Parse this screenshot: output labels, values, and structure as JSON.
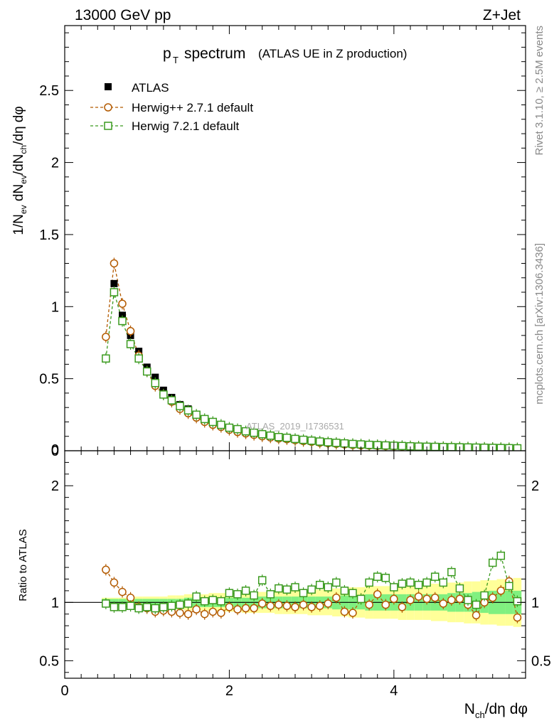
{
  "header": {
    "energy": "13000 GeV pp",
    "process": "Z+Jet"
  },
  "side_labels": {
    "rivet": "Rivet 3.1.10, ≥ 2.5M events",
    "source": "mcplots.cern.ch [arXiv:1306.3436]"
  },
  "watermark": "ATLAS_2019_I1736531",
  "colors": {
    "atlas": "#000000",
    "herwigpp": "#b35a00",
    "herwig7": "#3a9a1e",
    "band_yellow": "#ffff99",
    "band_green": "#80f080"
  },
  "chart_data": [
    {
      "type": "scatter",
      "title_main": "p",
      "title_sub": "T",
      "title_rest": "spectrum",
      "title_note": "(ATLAS UE in Z production)",
      "ylabel": "1/N_ev dN_ev/dN_ch/dη dφ",
      "xlim": [
        0,
        5.6
      ],
      "ylim": [
        0,
        2.95
      ],
      "yticks": [
        0,
        0.5,
        1,
        1.5,
        2,
        2.5
      ],
      "ytick_labels": [
        "0",
        "0.5",
        "1",
        "1.5",
        "2",
        "2.5"
      ],
      "legend": {
        "position": "top-left",
        "entries": [
          "ATLAS",
          "Herwig++ 2.7.1 default",
          "Herwig 7.2.1 default"
        ]
      },
      "x": [
        0.5,
        0.6,
        0.7,
        0.8,
        0.9,
        1.0,
        1.1,
        1.2,
        1.3,
        1.4,
        1.5,
        1.6,
        1.7,
        1.8,
        1.9,
        2.0,
        2.1,
        2.2,
        2.3,
        2.4,
        2.5,
        2.6,
        2.7,
        2.8,
        2.9,
        3.0,
        3.1,
        3.2,
        3.3,
        3.4,
        3.5,
        3.6,
        3.7,
        3.8,
        3.9,
        4.0,
        4.1,
        4.2,
        4.3,
        4.4,
        4.5,
        4.6,
        4.7,
        4.8,
        4.9,
        5.0,
        5.1,
        5.2,
        5.3,
        5.4,
        5.5
      ],
      "series": [
        {
          "name": "ATLAS",
          "values": [
            0.64,
            1.16,
            0.94,
            0.8,
            0.69,
            0.58,
            0.51,
            0.42,
            0.37,
            0.32,
            0.29,
            0.25,
            0.22,
            0.2,
            0.18,
            0.16,
            0.145,
            0.13,
            0.12,
            0.11,
            0.1,
            0.09,
            0.085,
            0.078,
            0.072,
            0.066,
            0.06,
            0.056,
            0.052,
            0.048,
            0.044,
            0.041,
            0.038,
            0.036,
            0.034,
            0.032,
            0.03,
            0.028,
            0.027,
            0.026,
            0.025,
            0.024,
            0.023,
            0.022,
            0.021,
            0.02,
            0.019,
            0.018,
            0.017,
            0.016,
            0.016
          ]
        },
        {
          "name": "Herwig++ 2.7.1 default",
          "values": [
            0.79,
            1.3,
            1.02,
            0.83,
            0.66,
            0.55,
            0.45,
            0.39,
            0.34,
            0.29,
            0.26,
            0.23,
            0.2,
            0.18,
            0.165,
            0.145,
            0.13,
            0.12,
            0.11,
            0.1,
            0.092,
            0.085,
            0.08,
            0.073,
            0.067,
            0.062,
            0.056,
            0.052,
            0.048,
            0.044,
            0.04,
            0.037,
            0.036,
            0.034,
            0.032,
            0.031,
            0.029,
            0.027,
            0.026,
            0.025,
            0.024,
            0.023,
            0.022,
            0.021,
            0.02,
            0.019,
            0.018,
            0.017,
            0.016,
            0.015,
            0.014
          ]
        },
        {
          "name": "Herwig 7.2.1 default",
          "values": [
            0.64,
            1.1,
            0.9,
            0.74,
            0.64,
            0.55,
            0.47,
            0.39,
            0.35,
            0.31,
            0.28,
            0.25,
            0.22,
            0.2,
            0.18,
            0.16,
            0.15,
            0.135,
            0.125,
            0.115,
            0.105,
            0.095,
            0.09,
            0.082,
            0.076,
            0.07,
            0.064,
            0.059,
            0.055,
            0.051,
            0.047,
            0.044,
            0.041,
            0.039,
            0.037,
            0.035,
            0.033,
            0.031,
            0.029,
            0.028,
            0.027,
            0.026,
            0.025,
            0.024,
            0.023,
            0.022,
            0.021,
            0.02,
            0.019,
            0.018,
            0.017
          ]
        }
      ]
    },
    {
      "type": "scatter",
      "ylabel": "Ratio to ATLAS",
      "xlabel": "N_ch/dη dφ",
      "xlim": [
        0,
        5.6
      ],
      "ylim": [
        0.35,
        2.3
      ],
      "xticks": [
        0,
        2,
        4
      ],
      "xtick_labels": [
        "0",
        "2",
        "4"
      ],
      "yticks": [
        0.5,
        1,
        2
      ],
      "ytick_labels": [
        "0.5",
        "1",
        "2"
      ],
      "x": [
        0.5,
        0.6,
        0.7,
        0.8,
        0.9,
        1.0,
        1.1,
        1.2,
        1.3,
        1.4,
        1.5,
        1.6,
        1.7,
        1.8,
        1.9,
        2.0,
        2.1,
        2.2,
        2.3,
        2.4,
        2.5,
        2.6,
        2.7,
        2.8,
        2.9,
        3.0,
        3.1,
        3.2,
        3.3,
        3.4,
        3.5,
        3.6,
        3.7,
        3.8,
        3.9,
        4.0,
        4.1,
        4.2,
        4.3,
        4.4,
        4.5,
        4.6,
        4.7,
        4.8,
        4.9,
        5.0,
        5.1,
        5.2,
        5.3,
        5.4,
        5.5
      ],
      "band_green": [
        0.03,
        0.03,
        0.03,
        0.03,
        0.03,
        0.03,
        0.03,
        0.03,
        0.03,
        0.03,
        0.04,
        0.04,
        0.04,
        0.04,
        0.04,
        0.04,
        0.04,
        0.04,
        0.05,
        0.05,
        0.05,
        0.05,
        0.05,
        0.05,
        0.05,
        0.05,
        0.05,
        0.05,
        0.06,
        0.06,
        0.06,
        0.06,
        0.07,
        0.07,
        0.07,
        0.07,
        0.07,
        0.07,
        0.07,
        0.07,
        0.07,
        0.07,
        0.08,
        0.08,
        0.08,
        0.09,
        0.09,
        0.1,
        0.1,
        0.1,
        0.1
      ],
      "band_yellow": [
        0.04,
        0.04,
        0.04,
        0.04,
        0.05,
        0.05,
        0.05,
        0.05,
        0.06,
        0.06,
        0.07,
        0.07,
        0.07,
        0.08,
        0.08,
        0.08,
        0.08,
        0.09,
        0.09,
        0.09,
        0.09,
        0.1,
        0.1,
        0.1,
        0.1,
        0.11,
        0.11,
        0.11,
        0.12,
        0.12,
        0.13,
        0.13,
        0.14,
        0.14,
        0.14,
        0.14,
        0.15,
        0.15,
        0.15,
        0.15,
        0.16,
        0.16,
        0.17,
        0.17,
        0.18,
        0.18,
        0.19,
        0.19,
        0.2,
        0.2,
        0.21
      ],
      "series": [
        {
          "name": "Herwig++ 2.7.1 default",
          "values": [
            1.28,
            1.17,
            1.09,
            1.04,
            0.96,
            0.95,
            0.92,
            0.93,
            0.92,
            0.91,
            0.9,
            0.94,
            0.9,
            0.92,
            0.91,
            0.96,
            0.94,
            0.95,
            0.95,
            0.99,
            0.97,
            0.98,
            0.97,
            0.96,
            0.98,
            0.96,
            0.97,
            0.99,
            1.04,
            0.92,
            0.91,
            1.03,
            0.98,
            1.07,
            0.98,
            1.03,
            0.96,
            1.02,
            1.05,
            1.03,
            1.04,
            0.99,
            1.02,
            1.03,
            0.98,
            0.89,
            1.0,
            1.04,
            1.1,
            1.18,
            0.87
          ]
        },
        {
          "name": "Herwig 7.2.1 default",
          "values": [
            0.99,
            0.96,
            0.96,
            0.97,
            0.95,
            0.96,
            0.95,
            0.96,
            0.97,
            0.98,
            0.99,
            1.05,
            1.01,
            1.02,
            1.01,
            1.08,
            1.07,
            1.1,
            1.06,
            1.19,
            1.07,
            1.12,
            1.11,
            1.13,
            1.08,
            1.11,
            1.15,
            1.13,
            1.17,
            1.1,
            1.08,
            1.03,
            1.17,
            1.22,
            1.21,
            1.13,
            1.16,
            1.17,
            1.15,
            1.17,
            1.22,
            1.17,
            1.26,
            1.12,
            1.02,
            0.98,
            1.06,
            1.34,
            1.4,
            1.14,
            1.01
          ]
        }
      ]
    }
  ]
}
